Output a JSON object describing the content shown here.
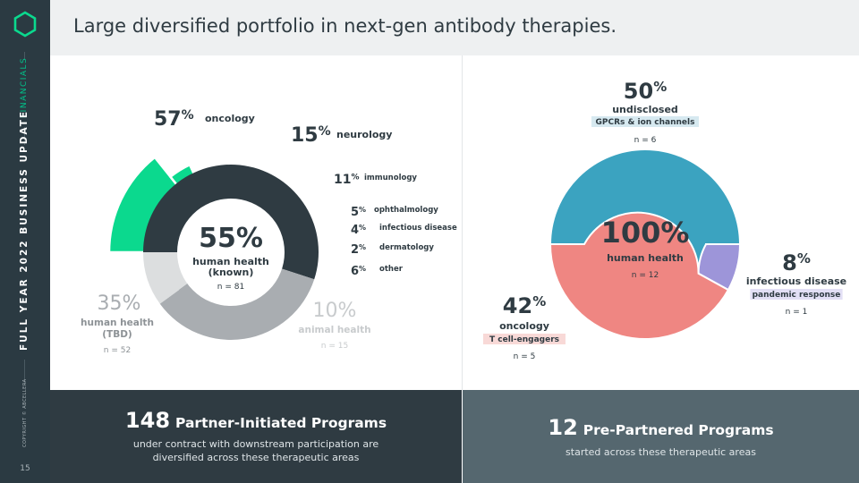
{
  "header": {
    "title": "Large diversified portfolio in next-gen antibody therapies."
  },
  "sidebar": {
    "section": "FINANCIALS",
    "deck_title": "FULL YEAR 2022 BUSINESS UPDATE",
    "copyright": "COPYRIGHT © ABCELLERA",
    "page_number": "15"
  },
  "colors": {
    "green": "#0bd98e",
    "dark_slate": "#2f3b42",
    "gray": "#a9adb1",
    "light_gray": "#dcdedf",
    "teal": "#3ba3c0",
    "salmon": "#ef8682",
    "purple": "#9d95d9"
  },
  "chart_data": [
    {
      "type": "pie",
      "name": "partner-initiated",
      "outer": [
        {
          "pct": 57,
          "label": "oncology"
        },
        {
          "pct": 15,
          "label": "neurology"
        },
        {
          "pct": 11,
          "label": "immunology"
        },
        {
          "pct": 5,
          "label": "ophthalmology"
        },
        {
          "pct": 4,
          "label": "infectious disease"
        },
        {
          "pct": 2,
          "label": "dermatology"
        },
        {
          "pct": 6,
          "label": "other"
        }
      ],
      "inner": [
        {
          "pct": 55,
          "label": "human health (known)",
          "n": "n = 81"
        },
        {
          "pct": 35,
          "label": "human health (TBD)",
          "n": "n = 52"
        },
        {
          "pct": 10,
          "label": "animal health",
          "n": "n = 15"
        }
      ],
      "pct_symbol": "%",
      "center": {
        "value": "55%",
        "label_1": "human health",
        "label_2": "(known)",
        "n": "n = 81"
      },
      "tbd": {
        "value": "35%",
        "label_1": "human health",
        "label_2": "(TBD)",
        "n": "n = 52"
      },
      "animal": {
        "value": "10%",
        "label": "animal health",
        "n": "n = 15"
      }
    },
    {
      "type": "pie",
      "name": "pre-partnered",
      "slices": [
        {
          "pct": 50,
          "label": "undisclosed",
          "tag": "GPCRs & ion channels",
          "n": "n = 6"
        },
        {
          "pct": 8,
          "label": "infectious disease",
          "tag": "pandemic response",
          "n": "n = 1"
        },
        {
          "pct": 42,
          "label": "oncology",
          "tag": "T cell-engagers",
          "n": "n = 5"
        }
      ],
      "center": {
        "value": "100%",
        "label": "human health",
        "n": "n = 12"
      }
    }
  ],
  "bands": {
    "left": {
      "number": "148",
      "label": "Partner-Initiated Programs",
      "line_1": "under contract with downstream participation are",
      "line_2": "diversified across these therapeutic areas"
    },
    "right": {
      "number": "12",
      "label": "Pre-Partnered Programs",
      "line_1": "started across these therapeutic areas"
    }
  }
}
